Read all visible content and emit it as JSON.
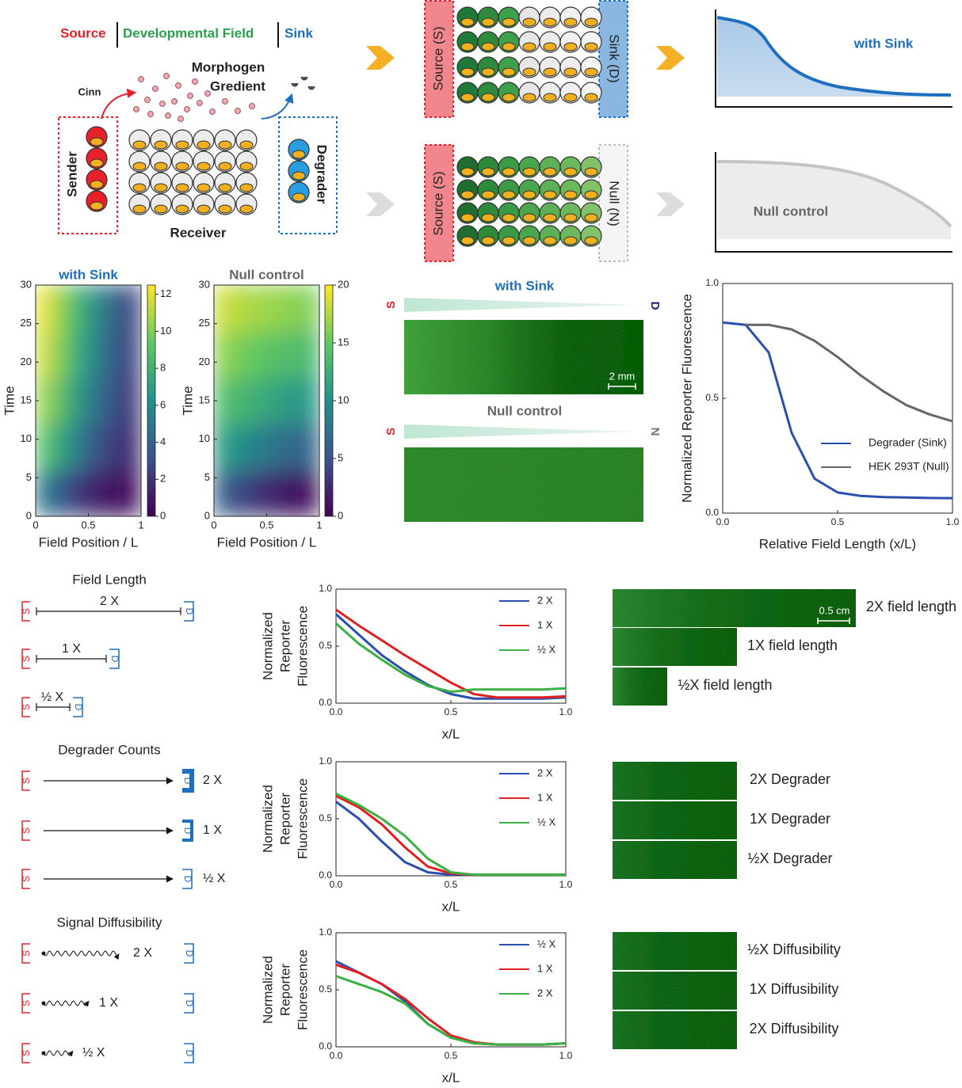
{
  "diagram": {
    "header": {
      "source": "Source",
      "field": "Developmental Field",
      "sink": "Sink"
    },
    "morphogen": [
      "Morphogen",
      "Gredient"
    ],
    "cinn": "Cinn",
    "sender": "Sender",
    "receiver": "Receiver",
    "degrader": "Degrader",
    "source_box": "Source (S)",
    "sink_box": "Sink (D)",
    "null_box": "Null (N)",
    "curve_sink": "with Sink",
    "curve_null": "Null control"
  },
  "imaging": {
    "sink_title": "with Sink",
    "null_title": "Null control",
    "s": "S",
    "d": "D",
    "n": "N",
    "scale": "2 mm"
  },
  "conditions": {
    "s": "S",
    "d": "D",
    "groups": [
      {
        "title": "Field Length",
        "levels": [
          "2 X",
          "1 X",
          "½ X"
        ]
      },
      {
        "title": "Degrader Counts",
        "levels": [
          "2 X",
          "1 X",
          "½ X"
        ]
      },
      {
        "title": "Signal Diffusibility",
        "levels": [
          "2 X",
          "1 X",
          "½ X"
        ]
      }
    ]
  },
  "micrographs": {
    "scale": "0.5 cm",
    "groups": [
      [
        "2X field length",
        "1X field length",
        "½X field length"
      ],
      [
        "2X Degrader",
        "1X Degrader",
        "½X Degrader"
      ],
      [
        "½X Diffusibility",
        "1X Diffusibility",
        "2X Diffusibility"
      ]
    ]
  },
  "chart_data": [
    {
      "type": "heatmap",
      "title": "with Sink",
      "title_color": "#1f6fc0",
      "x_label": "Field Position / L",
      "y_label": "Time",
      "xlim": [
        0,
        1
      ],
      "xticks": [
        0,
        0.5,
        1
      ],
      "ylim": [
        0,
        30
      ],
      "yticks": [
        0,
        5,
        10,
        15,
        20,
        25,
        30
      ],
      "x": [
        0.1,
        0.3,
        0.5,
        0.7,
        0.9
      ],
      "y": [
        3,
        9,
        15,
        21,
        27
      ],
      "z": [
        [
          5,
          3,
          1.5,
          0.8,
          0.5
        ],
        [
          9,
          6.5,
          4,
          2.5,
          1.5
        ],
        [
          10.5,
          8,
          5.5,
          3.5,
          2
        ],
        [
          11.5,
          9,
          6.5,
          4,
          2.5
        ],
        [
          12,
          9.5,
          7,
          4.5,
          2.5
        ]
      ],
      "colormap": "viridis",
      "clim": [
        0,
        12.5
      ],
      "cticks": [
        0,
        2,
        4,
        6,
        8,
        10,
        12
      ]
    },
    {
      "type": "heatmap",
      "title": "Null control",
      "title_color": "#666666",
      "x_label": "Field Position / L",
      "y_label": "Time",
      "xlim": [
        0,
        1
      ],
      "xticks": [
        0,
        0.5,
        1
      ],
      "ylim": [
        0,
        30
      ],
      "yticks": [
        0,
        5,
        10,
        15,
        20,
        25,
        30
      ],
      "x": [
        0.1,
        0.3,
        0.5,
        0.7,
        0.9
      ],
      "y": [
        3,
        9,
        15,
        21,
        27
      ],
      "z": [
        [
          6,
          4,
          2.5,
          1.5,
          1
        ],
        [
          11,
          9.5,
          8,
          7,
          6.5
        ],
        [
          14,
          13,
          12,
          11,
          10.5
        ],
        [
          16.5,
          15.5,
          14.5,
          14,
          13.5
        ],
        [
          18.5,
          17.5,
          17,
          16.5,
          16
        ]
      ],
      "colormap": "viridis",
      "clim": [
        0,
        20
      ],
      "cticks": [
        0,
        5,
        10,
        15,
        20
      ]
    },
    {
      "type": "line",
      "x_label": "Relative Field Length (x/L)",
      "y_label": [
        "Normalized Reporter Fluorescence"
      ],
      "xlim": [
        0,
        1
      ],
      "xticks": [
        {
          "value": 0,
          "label": "0.0"
        },
        0.5,
        {
          "value": 1,
          "label": "1.0"
        }
      ],
      "ylim": [
        0,
        1
      ],
      "yticks": [
        {
          "value": 0,
          "label": "0.0"
        },
        0.5,
        {
          "value": 1,
          "label": "1.0"
        }
      ],
      "x": [
        0,
        0.1,
        0.2,
        0.3,
        0.4,
        0.5,
        0.6,
        0.7,
        0.8,
        0.9,
        1.0
      ],
      "legend": "lower right",
      "series": [
        {
          "name": "Degrader (Sink)",
          "color": "#2a4fb0",
          "values": [
            0.83,
            0.82,
            0.7,
            0.35,
            0.15,
            0.09,
            0.075,
            0.07,
            0.068,
            0.066,
            0.065
          ]
        },
        {
          "name": "HEK 293T (Null)",
          "color": "#666666",
          "values": [
            null,
            0.82,
            0.82,
            0.8,
            0.75,
            0.68,
            0.6,
            0.53,
            0.47,
            0.43,
            0.4
          ]
        }
      ]
    },
    {
      "type": "line",
      "x_label": "x/L",
      "y_label": [
        "Normalized",
        "Reporter",
        "Fluorescence"
      ],
      "xlim": [
        0,
        1
      ],
      "xticks": [
        {
          "value": 0,
          "label": "0.0"
        },
        0.5,
        {
          "value": 1,
          "label": "1.0"
        }
      ],
      "ylim": [
        0,
        1
      ],
      "yticks": [
        {
          "value": 0,
          "label": "0.0"
        },
        0.5,
        {
          "value": 1,
          "label": "1.0"
        }
      ],
      "x": [
        0,
        0.1,
        0.2,
        0.3,
        0.4,
        0.5,
        0.6,
        0.7,
        0.8,
        0.9,
        1.0
      ],
      "legend": "upper right",
      "series": [
        {
          "name": "2 X",
          "color": "#2a4fb0",
          "values": [
            0.78,
            0.6,
            0.42,
            0.28,
            0.16,
            0.08,
            0.04,
            0.04,
            0.04,
            0.04,
            0.05
          ]
        },
        {
          "name": "1 X",
          "color": "#e02020",
          "values": [
            0.82,
            0.68,
            0.55,
            0.42,
            0.3,
            0.18,
            0.08,
            0.05,
            0.05,
            0.05,
            0.06
          ]
        },
        {
          "name": "½ X",
          "color": "#3cb043",
          "values": [
            0.7,
            0.52,
            0.38,
            0.25,
            0.15,
            0.1,
            0.12,
            0.12,
            0.12,
            0.12,
            0.13
          ]
        }
      ]
    },
    {
      "type": "line",
      "x_label": "x/L",
      "y_label": [
        "Normalized",
        "Reporter",
        "Fluorescence"
      ],
      "xlim": [
        0,
        1
      ],
      "xticks": [
        {
          "value": 0,
          "label": "0.0"
        },
        0.5,
        {
          "value": 1,
          "label": "1.0"
        }
      ],
      "ylim": [
        0,
        1
      ],
      "yticks": [
        {
          "value": 0,
          "label": "0.0"
        },
        0.5,
        {
          "value": 1,
          "label": "1.0"
        }
      ],
      "x": [
        0,
        0.1,
        0.2,
        0.3,
        0.4,
        0.5,
        0.6,
        0.7,
        0.8,
        0.9,
        1.0
      ],
      "legend": "upper right",
      "series": [
        {
          "name": "2 X",
          "color": "#2a4fb0",
          "values": [
            0.65,
            0.5,
            0.3,
            0.12,
            0.03,
            0.01,
            0.01,
            0.01,
            0.01,
            0.01,
            0.01
          ]
        },
        {
          "name": "1 X",
          "color": "#e02020",
          "values": [
            0.7,
            0.6,
            0.45,
            0.25,
            0.08,
            0.02,
            0.01,
            0.01,
            0.01,
            0.01,
            0.01
          ]
        },
        {
          "name": "½ X",
          "color": "#3cb043",
          "values": [
            0.72,
            0.62,
            0.5,
            0.35,
            0.15,
            0.03,
            0.01,
            0.01,
            0.01,
            0.01,
            0.01
          ]
        }
      ]
    },
    {
      "type": "line",
      "x_label": "x/L",
      "y_label": [
        "Normalized",
        "Reporter",
        "Fluorescence"
      ],
      "xlim": [
        0,
        1
      ],
      "xticks": [
        {
          "value": 0,
          "label": "0.0"
        },
        0.5,
        {
          "value": 1,
          "label": "1.0"
        }
      ],
      "ylim": [
        0,
        1
      ],
      "yticks": [
        {
          "value": 0,
          "label": "0.0"
        },
        0.5,
        {
          "value": 1,
          "label": "1.0"
        }
      ],
      "x": [
        0,
        0.1,
        0.2,
        0.3,
        0.4,
        0.5,
        0.6,
        0.7,
        0.8,
        0.9,
        1.0
      ],
      "legend": "upper right",
      "series": [
        {
          "name": "½ X",
          "color": "#2a4fb0",
          "values": [
            0.75,
            0.65,
            0.55,
            0.4,
            0.2,
            0.08,
            0.03,
            0.02,
            0.02,
            0.02,
            0.03
          ]
        },
        {
          "name": "1 X",
          "color": "#e02020",
          "values": [
            0.72,
            0.65,
            0.55,
            0.42,
            0.25,
            0.1,
            0.04,
            0.02,
            0.02,
            0.02,
            0.03
          ]
        },
        {
          "name": "2 X",
          "color": "#3cb043",
          "values": [
            0.62,
            0.55,
            0.48,
            0.38,
            0.2,
            0.08,
            0.03,
            0.02,
            0.02,
            0.02,
            0.03
          ]
        }
      ]
    }
  ]
}
